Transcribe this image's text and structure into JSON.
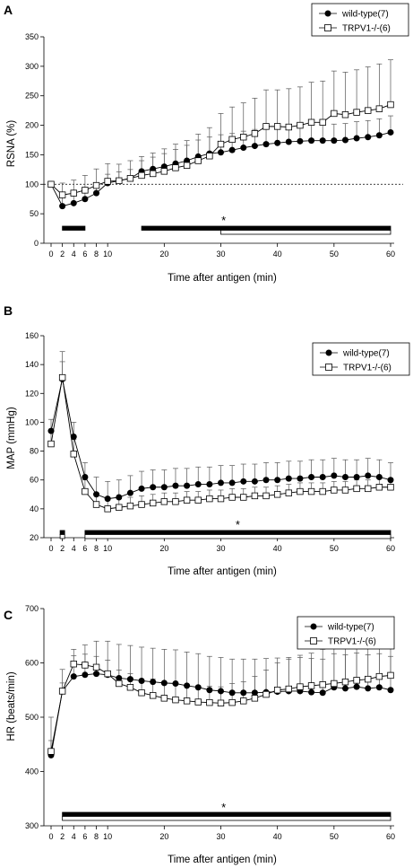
{
  "chart_data": [
    {
      "panel_label": "A",
      "type": "line",
      "xlabel": "Time after antigen (min)",
      "ylabel": "RSNA (%)",
      "xticks": [
        0,
        2,
        4,
        6,
        8,
        10,
        20,
        30,
        40,
        50,
        60
      ],
      "ylim": [
        0,
        350
      ],
      "yticks": [
        0,
        50,
        100,
        150,
        200,
        250,
        300,
        350
      ],
      "reference_line": 100,
      "legend": "top-right",
      "x": [
        0,
        2,
        4,
        6,
        8,
        10,
        12,
        14,
        16,
        18,
        20,
        22,
        24,
        26,
        28,
        30,
        32,
        34,
        36,
        38,
        40,
        42,
        44,
        46,
        48,
        50,
        52,
        54,
        56,
        58,
        60
      ],
      "series": [
        {
          "name": "wild-type(7)",
          "marker": "filled-circle",
          "values": [
            100,
            63,
            68,
            75,
            85,
            102,
            106,
            110,
            122,
            126,
            130,
            135,
            140,
            147,
            152,
            154,
            158,
            162,
            165,
            168,
            170,
            172,
            173,
            174,
            174,
            174,
            175,
            178,
            180,
            183,
            188
          ],
          "errors": [
            0,
            15,
            15,
            17,
            18,
            15,
            15,
            15,
            18,
            20,
            22,
            24,
            26,
            28,
            28,
            30,
            28,
            28,
            28,
            28,
            28,
            28,
            28,
            28,
            28,
            28,
            28,
            28,
            28,
            28,
            28
          ]
        },
        {
          "name": "TRPV1-/-(6)",
          "marker": "open-square",
          "values": [
            100,
            82,
            85,
            90,
            98,
            105,
            106,
            110,
            115,
            118,
            122,
            128,
            132,
            140,
            148,
            168,
            176,
            180,
            186,
            198,
            198,
            197,
            200,
            205,
            205,
            220,
            218,
            222,
            225,
            228,
            235
          ],
          "errors": [
            0,
            20,
            22,
            25,
            28,
            30,
            28,
            30,
            32,
            35,
            38,
            40,
            42,
            45,
            48,
            52,
            55,
            58,
            60,
            62,
            62,
            65,
            65,
            68,
            70,
            72,
            72,
            72,
            74,
            76,
            76
          ]
        }
      ],
      "significance_bars": [
        {
          "series": "wild-type(7)",
          "fill": "filled",
          "from": 2,
          "to": 6
        },
        {
          "series": "wild-type(7)",
          "fill": "filled",
          "from": 16,
          "to": 60
        },
        {
          "series": "TRPV1-/-(6)",
          "fill": "open",
          "from": 30,
          "to": 60
        }
      ],
      "star_label": "*"
    },
    {
      "panel_label": "B",
      "type": "line",
      "xlabel": "Time after antigen (min)",
      "ylabel": "MAP (mmHg)",
      "xticks": [
        0,
        2,
        4,
        6,
        8,
        10,
        20,
        30,
        40,
        50,
        60
      ],
      "ylim": [
        20,
        160
      ],
      "yticks": [
        20,
        40,
        60,
        80,
        100,
        120,
        140,
        160
      ],
      "legend": "top-right",
      "x": [
        0,
        2,
        4,
        6,
        8,
        10,
        12,
        14,
        16,
        18,
        20,
        22,
        24,
        26,
        28,
        30,
        32,
        34,
        36,
        38,
        40,
        42,
        44,
        46,
        48,
        50,
        52,
        54,
        56,
        58,
        60
      ],
      "series": [
        {
          "name": "wild-type(7)",
          "marker": "filled-circle",
          "values": [
            94,
            130,
            90,
            62,
            50,
            47,
            48,
            51,
            54,
            55,
            55,
            56,
            56,
            57,
            57,
            58,
            58,
            59,
            59,
            60,
            60,
            61,
            61,
            62,
            62,
            63,
            62,
            62,
            63,
            62,
            60
          ],
          "errors": [
            8,
            12,
            10,
            10,
            12,
            12,
            12,
            12,
            12,
            12,
            12,
            12,
            12,
            12,
            12,
            12,
            12,
            12,
            12,
            12,
            12,
            12,
            12,
            12,
            12,
            12,
            12,
            12,
            12,
            12,
            12
          ]
        },
        {
          "name": "TRPV1-/-(6)",
          "marker": "open-square",
          "values": [
            85,
            131,
            78,
            52,
            43,
            40,
            41,
            42,
            43,
            44,
            45,
            45,
            46,
            46,
            47,
            47,
            48,
            48,
            49,
            49,
            50,
            51,
            52,
            52,
            52,
            53,
            53,
            54,
            54,
            55,
            55
          ],
          "errors": [
            8,
            18,
            10,
            8,
            7,
            6,
            6,
            6,
            6,
            6,
            6,
            6,
            6,
            6,
            6,
            6,
            6,
            6,
            6,
            6,
            6,
            6,
            6,
            6,
            6,
            6,
            6,
            6,
            6,
            6,
            6
          ]
        }
      ],
      "significance_bars": [
        {
          "series": "wild-type(7)",
          "fill": "filled",
          "from": 1.6,
          "to": 2.4
        },
        {
          "series": "TRPV1-/-(6)",
          "fill": "open",
          "from": 1.6,
          "to": 2.4
        },
        {
          "series": "wild-type(7)",
          "fill": "filled",
          "from": 6,
          "to": 60
        },
        {
          "series": "TRPV1-/-(6)",
          "fill": "open",
          "from": 6,
          "to": 60
        }
      ],
      "star_label": "*"
    },
    {
      "panel_label": "C",
      "type": "line",
      "xlabel": "Time after antigen (min)",
      "ylabel": "HR (beats/min)",
      "xticks": [
        0,
        2,
        4,
        6,
        8,
        10,
        20,
        30,
        40,
        50,
        60
      ],
      "ylim": [
        300,
        700
      ],
      "yticks": [
        300,
        400,
        500,
        600,
        700
      ],
      "legend": "top-right",
      "x": [
        0,
        2,
        4,
        6,
        8,
        10,
        12,
        14,
        16,
        18,
        20,
        22,
        24,
        26,
        28,
        30,
        32,
        34,
        36,
        38,
        40,
        42,
        44,
        46,
        48,
        50,
        52,
        54,
        56,
        58,
        60
      ],
      "series": [
        {
          "name": "wild-type(7)",
          "marker": "filled-circle",
          "values": [
            430,
            548,
            575,
            578,
            580,
            578,
            572,
            570,
            567,
            565,
            563,
            562,
            558,
            555,
            550,
            548,
            545,
            545,
            545,
            546,
            547,
            548,
            548,
            546,
            545,
            555,
            553,
            556,
            553,
            555,
            550
          ],
          "errors": [
            70,
            40,
            50,
            55,
            60,
            62,
            62,
            62,
            62,
            62,
            62,
            62,
            62,
            62,
            62,
            62,
            62,
            62,
            62,
            62,
            62,
            62,
            62,
            62,
            62,
            62,
            62,
            62,
            62,
            62,
            62
          ]
        },
        {
          "name": "TRPV1-/-(6)",
          "marker": "open-square",
          "values": [
            437,
            548,
            598,
            596,
            592,
            580,
            562,
            555,
            545,
            540,
            535,
            532,
            530,
            528,
            527,
            526,
            527,
            530,
            535,
            542,
            550,
            552,
            556,
            558,
            560,
            562,
            565,
            568,
            570,
            575,
            577
          ],
          "errors": [
            20,
            15,
            15,
            20,
            20,
            25,
            25,
            25,
            25,
            30,
            30,
            30,
            30,
            30,
            30,
            30,
            35,
            35,
            40,
            45,
            50,
            55,
            58,
            60,
            65,
            68,
            70,
            72,
            72,
            72,
            75
          ]
        }
      ],
      "significance_bars": [
        {
          "series": "wild-type(7)",
          "fill": "filled",
          "from": 2,
          "to": 60
        },
        {
          "series": "TRPV1-/-(6)",
          "fill": "open",
          "from": 2,
          "to": 60
        }
      ],
      "star_label": "*"
    }
  ]
}
